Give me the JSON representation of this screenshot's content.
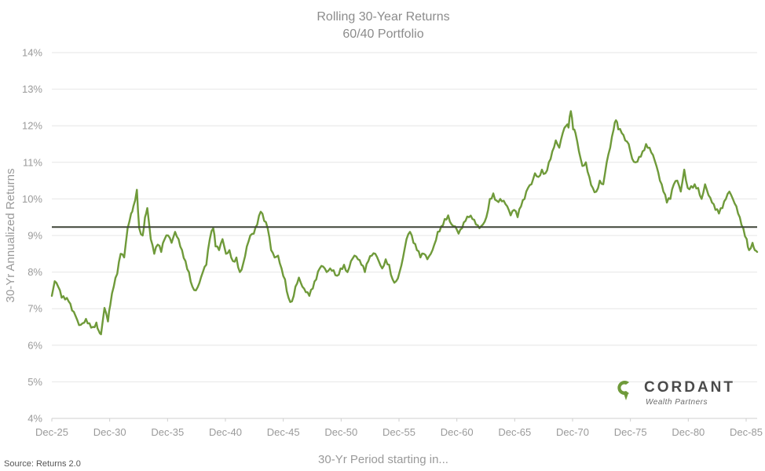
{
  "chart_data": {
    "type": "line",
    "title": "Rolling 30-Year Returns",
    "subtitle": "60/40 Portfolio",
    "xlabel": "30-Yr Period starting in...",
    "ylabel": "30-Yr Annualized Returns",
    "x_ticks": [
      "Dec-25",
      "Dec-30",
      "Dec-35",
      "Dec-40",
      "Dec-45",
      "Dec-50",
      "Dec-55",
      "Dec-60",
      "Dec-65",
      "Dec-70",
      "Dec-75",
      "Dec-80",
      "Dec-85"
    ],
    "y_ticks": [
      "4%",
      "5%",
      "6%",
      "7%",
      "8%",
      "9%",
      "10%",
      "11%",
      "12%",
      "13%",
      "14%"
    ],
    "ylim": [
      4,
      14
    ],
    "xlim": [
      1925.95,
      1986.9
    ],
    "grid": "horizontal",
    "average_line": 9.23,
    "series": [
      {
        "color": "#6f9a3a",
        "points": [
          [
            1925.95,
            7.35
          ],
          [
            1926.2,
            7.75
          ],
          [
            1926.5,
            7.6
          ],
          [
            1926.8,
            7.3
          ],
          [
            1927.1,
            7.25
          ],
          [
            1927.4,
            7.2
          ],
          [
            1927.7,
            6.95
          ],
          [
            1928.0,
            6.8
          ],
          [
            1928.3,
            6.55
          ],
          [
            1928.6,
            6.6
          ],
          [
            1928.9,
            6.72
          ],
          [
            1929.2,
            6.6
          ],
          [
            1929.5,
            6.5
          ],
          [
            1929.8,
            6.62
          ],
          [
            1930.0,
            6.4
          ],
          [
            1930.2,
            6.3
          ],
          [
            1930.5,
            7.02
          ],
          [
            1930.8,
            6.65
          ],
          [
            1931.0,
            7.1
          ],
          [
            1931.3,
            7.6
          ],
          [
            1931.6,
            7.95
          ],
          [
            1931.9,
            8.5
          ],
          [
            1932.2,
            8.4
          ],
          [
            1932.5,
            9.2
          ],
          [
            1932.8,
            9.6
          ],
          [
            1933.0,
            9.8
          ],
          [
            1933.3,
            10.25
          ],
          [
            1933.5,
            9.2
          ],
          [
            1933.8,
            9.0
          ],
          [
            1934.0,
            9.5
          ],
          [
            1934.2,
            9.75
          ],
          [
            1934.5,
            8.9
          ],
          [
            1934.8,
            8.5
          ],
          [
            1935.1,
            8.75
          ],
          [
            1935.4,
            8.55
          ],
          [
            1935.7,
            8.9
          ],
          [
            1936.0,
            9.0
          ],
          [
            1936.3,
            8.8
          ],
          [
            1936.6,
            9.1
          ],
          [
            1936.9,
            8.9
          ],
          [
            1937.2,
            8.6
          ],
          [
            1937.5,
            8.3
          ],
          [
            1937.8,
            8.0
          ],
          [
            1938.1,
            7.6
          ],
          [
            1938.4,
            7.5
          ],
          [
            1938.7,
            7.7
          ],
          [
            1939.0,
            8.0
          ],
          [
            1939.3,
            8.2
          ],
          [
            1939.6,
            8.9
          ],
          [
            1939.9,
            9.2
          ],
          [
            1940.1,
            8.7
          ],
          [
            1940.4,
            8.6
          ],
          [
            1940.7,
            8.9
          ],
          [
            1941.0,
            8.5
          ],
          [
            1941.3,
            8.6
          ],
          [
            1941.6,
            8.3
          ],
          [
            1941.9,
            8.4
          ],
          [
            1942.2,
            8.0
          ],
          [
            1942.5,
            8.25
          ],
          [
            1942.8,
            8.7
          ],
          [
            1943.1,
            9.0
          ],
          [
            1943.4,
            9.05
          ],
          [
            1943.7,
            9.3
          ],
          [
            1944.0,
            9.65
          ],
          [
            1944.3,
            9.4
          ],
          [
            1944.6,
            9.2
          ],
          [
            1944.9,
            8.6
          ],
          [
            1945.2,
            8.4
          ],
          [
            1945.5,
            8.45
          ],
          [
            1945.8,
            8.1
          ],
          [
            1946.1,
            7.8
          ],
          [
            1946.4,
            7.3
          ],
          [
            1946.7,
            7.2
          ],
          [
            1947.0,
            7.6
          ],
          [
            1947.3,
            7.85
          ],
          [
            1947.6,
            7.6
          ],
          [
            1947.9,
            7.45
          ],
          [
            1948.2,
            7.35
          ],
          [
            1948.5,
            7.55
          ],
          [
            1948.8,
            7.8
          ],
          [
            1949.1,
            8.1
          ],
          [
            1949.4,
            8.15
          ],
          [
            1949.7,
            8.0
          ],
          [
            1950.0,
            8.1
          ],
          [
            1950.3,
            8.05
          ],
          [
            1950.6,
            7.9
          ],
          [
            1950.9,
            8.1
          ],
          [
            1951.2,
            8.2
          ],
          [
            1951.5,
            8.0
          ],
          [
            1951.8,
            8.3
          ],
          [
            1952.1,
            8.45
          ],
          [
            1952.4,
            8.35
          ],
          [
            1952.7,
            8.2
          ],
          [
            1953.0,
            8.0
          ],
          [
            1953.3,
            8.3
          ],
          [
            1953.6,
            8.45
          ],
          [
            1953.9,
            8.5
          ],
          [
            1954.2,
            8.3
          ],
          [
            1954.5,
            8.1
          ],
          [
            1954.8,
            8.35
          ],
          [
            1955.1,
            8.2
          ],
          [
            1955.4,
            7.8
          ],
          [
            1955.7,
            7.75
          ],
          [
            1956.0,
            8.0
          ],
          [
            1956.3,
            8.4
          ],
          [
            1956.6,
            8.9
          ],
          [
            1956.9,
            9.1
          ],
          [
            1957.2,
            8.8
          ],
          [
            1957.5,
            8.6
          ],
          [
            1957.8,
            8.4
          ],
          [
            1958.1,
            8.5
          ],
          [
            1958.4,
            8.35
          ],
          [
            1958.7,
            8.5
          ],
          [
            1959.0,
            8.75
          ],
          [
            1959.3,
            9.1
          ],
          [
            1959.6,
            9.25
          ],
          [
            1959.9,
            9.45
          ],
          [
            1960.2,
            9.55
          ],
          [
            1960.5,
            9.3
          ],
          [
            1960.8,
            9.25
          ],
          [
            1961.1,
            9.05
          ],
          [
            1961.4,
            9.2
          ],
          [
            1961.7,
            9.4
          ],
          [
            1962.0,
            9.5
          ],
          [
            1962.3,
            9.45
          ],
          [
            1962.6,
            9.3
          ],
          [
            1962.9,
            9.2
          ],
          [
            1963.2,
            9.3
          ],
          [
            1963.5,
            9.5
          ],
          [
            1963.8,
            10.0
          ],
          [
            1964.1,
            10.15
          ],
          [
            1964.4,
            9.95
          ],
          [
            1964.7,
            10.0
          ],
          [
            1965.0,
            9.95
          ],
          [
            1965.3,
            9.8
          ],
          [
            1965.6,
            9.55
          ],
          [
            1965.9,
            9.7
          ],
          [
            1966.2,
            9.5
          ],
          [
            1966.5,
            9.8
          ],
          [
            1966.8,
            10.0
          ],
          [
            1967.1,
            10.3
          ],
          [
            1967.4,
            10.4
          ],
          [
            1967.7,
            10.7
          ],
          [
            1968.0,
            10.6
          ],
          [
            1968.3,
            10.8
          ],
          [
            1968.6,
            10.7
          ],
          [
            1968.9,
            11.0
          ],
          [
            1969.2,
            11.3
          ],
          [
            1969.5,
            11.6
          ],
          [
            1969.8,
            11.4
          ],
          [
            1970.1,
            11.8
          ],
          [
            1970.4,
            12.0
          ],
          [
            1970.6,
            11.95
          ],
          [
            1970.8,
            12.4
          ],
          [
            1971.0,
            11.9
          ],
          [
            1971.2,
            11.8
          ],
          [
            1971.5,
            11.3
          ],
          [
            1971.8,
            10.9
          ],
          [
            1972.1,
            11.0
          ],
          [
            1972.4,
            10.6
          ],
          [
            1972.7,
            10.3
          ],
          [
            1973.0,
            10.2
          ],
          [
            1973.3,
            10.5
          ],
          [
            1973.6,
            10.4
          ],
          [
            1973.9,
            11.0
          ],
          [
            1974.2,
            11.4
          ],
          [
            1974.5,
            11.9
          ],
          [
            1974.7,
            12.15
          ],
          [
            1974.9,
            11.9
          ],
          [
            1975.2,
            11.8
          ],
          [
            1975.5,
            11.6
          ],
          [
            1975.8,
            11.5
          ],
          [
            1976.1,
            11.1
          ],
          [
            1976.4,
            11.0
          ],
          [
            1976.7,
            11.15
          ],
          [
            1977.0,
            11.3
          ],
          [
            1977.3,
            11.5
          ],
          [
            1977.6,
            11.4
          ],
          [
            1977.9,
            11.2
          ],
          [
            1978.2,
            10.9
          ],
          [
            1978.5,
            10.5
          ],
          [
            1978.8,
            10.2
          ],
          [
            1979.1,
            9.9
          ],
          [
            1979.4,
            10.0
          ],
          [
            1979.7,
            10.4
          ],
          [
            1980.0,
            10.5
          ],
          [
            1980.3,
            10.2
          ],
          [
            1980.6,
            10.8
          ],
          [
            1980.9,
            10.3
          ],
          [
            1981.2,
            10.35
          ],
          [
            1981.5,
            10.4
          ],
          [
            1981.8,
            10.3
          ],
          [
            1982.1,
            10.0
          ],
          [
            1982.4,
            10.4
          ],
          [
            1982.7,
            10.1
          ],
          [
            1983.0,
            9.9
          ],
          [
            1983.3,
            9.7
          ],
          [
            1983.6,
            9.6
          ],
          [
            1983.9,
            9.75
          ],
          [
            1984.2,
            10.0
          ],
          [
            1984.5,
            10.2
          ],
          [
            1984.8,
            10.0
          ],
          [
            1985.1,
            9.8
          ],
          [
            1985.4,
            9.5
          ],
          [
            1985.7,
            9.2
          ],
          [
            1986.0,
            8.9
          ],
          [
            1986.2,
            8.6
          ],
          [
            1986.5,
            8.8
          ],
          [
            1986.7,
            8.6
          ],
          [
            1986.9,
            8.55
          ]
        ]
      }
    ]
  },
  "source_text": "Source: Returns 2.0",
  "logo": {
    "name": "CORDANT",
    "tagline": "Wealth Partners",
    "color": "#6f9a3a"
  }
}
